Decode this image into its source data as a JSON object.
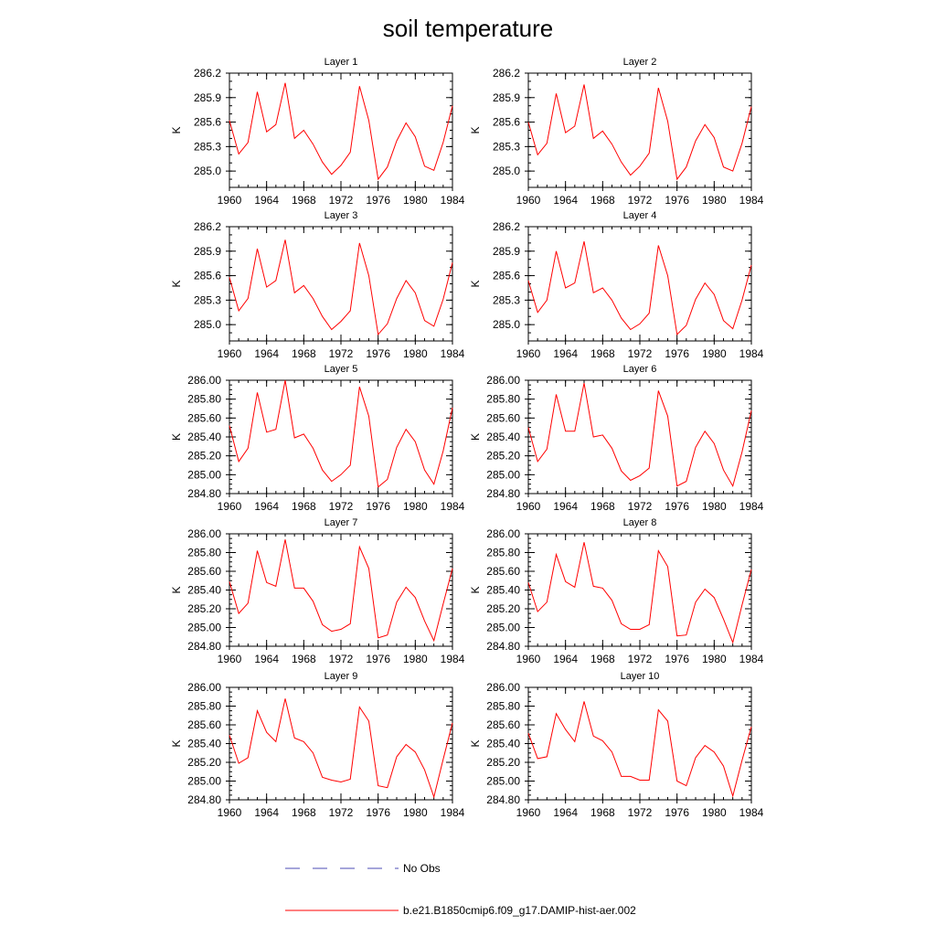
{
  "figure": {
    "title": "soil temperature"
  },
  "legend": {
    "entries": [
      {
        "label": "No Obs",
        "color": "#4b4bb4",
        "style": "dashed"
      },
      {
        "label": "b.e21.B1850cmip6.f09_g17.DAMIP-hist-aer.002",
        "color": "#ff0000",
        "style": "solid"
      }
    ]
  },
  "chart_data": [
    {
      "type": "line",
      "title": "Layer 1",
      "ylabel": "K",
      "xlim": [
        1960,
        1984
      ],
      "xticks": [
        "1960",
        "1964",
        "1968",
        "1972",
        "1976",
        "1980",
        "1984"
      ],
      "ylim": [
        284.8,
        286.2
      ],
      "yticks": [
        "285.0",
        "285.3",
        "285.6",
        "285.9",
        "286.2"
      ],
      "grid": false,
      "series": [
        {
          "color": "#ff0000",
          "x": [
            1960,
            1961,
            1962,
            1963,
            1964,
            1965,
            1966,
            1967,
            1968,
            1969,
            1970,
            1971,
            1972,
            1973,
            1974,
            1975,
            1976,
            1977,
            1978,
            1979,
            1980,
            1981,
            1982,
            1983,
            1984
          ],
          "values": [
            285.62,
            285.21,
            285.35,
            285.97,
            285.48,
            285.57,
            286.08,
            285.4,
            285.5,
            285.33,
            285.11,
            284.96,
            285.07,
            285.23,
            286.04,
            285.62,
            284.9,
            285.05,
            285.37,
            285.59,
            285.42,
            285.06,
            285.01,
            285.35,
            285.8
          ]
        }
      ]
    },
    {
      "type": "line",
      "title": "Layer 2",
      "ylabel": "K",
      "xlim": [
        1960,
        1984
      ],
      "xticks": [
        "1960",
        "1964",
        "1968",
        "1972",
        "1976",
        "1980",
        "1984"
      ],
      "ylim": [
        284.8,
        286.2
      ],
      "yticks": [
        "285.0",
        "285.3",
        "285.6",
        "285.9",
        "286.2"
      ],
      "grid": false,
      "series": [
        {
          "color": "#ff0000",
          "x": [
            1960,
            1961,
            1962,
            1963,
            1964,
            1965,
            1966,
            1967,
            1968,
            1969,
            1970,
            1971,
            1972,
            1973,
            1974,
            1975,
            1976,
            1977,
            1978,
            1979,
            1980,
            1981,
            1982,
            1983,
            1984
          ],
          "values": [
            285.6,
            285.2,
            285.34,
            285.95,
            285.47,
            285.55,
            286.06,
            285.4,
            285.49,
            285.33,
            285.11,
            284.95,
            285.06,
            285.22,
            286.02,
            285.61,
            284.9,
            285.05,
            285.37,
            285.57,
            285.41,
            285.05,
            285.0,
            285.34,
            285.79
          ]
        }
      ]
    },
    {
      "type": "line",
      "title": "Layer 3",
      "ylabel": "K",
      "xlim": [
        1960,
        1984
      ],
      "xticks": [
        "1960",
        "1964",
        "1968",
        "1972",
        "1976",
        "1980",
        "1984"
      ],
      "ylim": [
        284.8,
        286.2
      ],
      "yticks": [
        "285.0",
        "285.3",
        "285.6",
        "285.9",
        "286.2"
      ],
      "grid": false,
      "series": [
        {
          "color": "#ff0000",
          "x": [
            1960,
            1961,
            1962,
            1963,
            1964,
            1965,
            1966,
            1967,
            1968,
            1969,
            1970,
            1971,
            1972,
            1973,
            1974,
            1975,
            1976,
            1977,
            1978,
            1979,
            1980,
            1981,
            1982,
            1983,
            1984
          ],
          "values": [
            285.58,
            285.17,
            285.32,
            285.93,
            285.46,
            285.54,
            286.04,
            285.39,
            285.48,
            285.32,
            285.1,
            284.94,
            285.04,
            285.17,
            286.0,
            285.6,
            284.88,
            285.01,
            285.32,
            285.54,
            285.39,
            285.05,
            284.98,
            285.31,
            285.76
          ]
        }
      ]
    },
    {
      "type": "line",
      "title": "Layer 4",
      "ylabel": "K",
      "xlim": [
        1960,
        1984
      ],
      "xticks": [
        "1960",
        "1964",
        "1968",
        "1972",
        "1976",
        "1980",
        "1984"
      ],
      "ylim": [
        284.8,
        286.2
      ],
      "yticks": [
        "285.0",
        "285.3",
        "285.6",
        "285.9",
        "286.2"
      ],
      "grid": false,
      "series": [
        {
          "color": "#ff0000",
          "x": [
            1960,
            1961,
            1962,
            1963,
            1964,
            1965,
            1966,
            1967,
            1968,
            1969,
            1970,
            1971,
            1972,
            1973,
            1974,
            1975,
            1976,
            1977,
            1978,
            1979,
            1980,
            1981,
            1982,
            1983,
            1984
          ],
          "values": [
            285.54,
            285.15,
            285.3,
            285.9,
            285.45,
            285.51,
            286.02,
            285.39,
            285.45,
            285.3,
            285.08,
            284.94,
            285.01,
            285.14,
            285.97,
            285.6,
            284.88,
            284.99,
            285.31,
            285.51,
            285.37,
            285.05,
            284.95,
            285.3,
            285.73
          ]
        }
      ]
    },
    {
      "type": "line",
      "title": "Layer 5",
      "ylabel": "K",
      "xlim": [
        1960,
        1984
      ],
      "xticks": [
        "1960",
        "1964",
        "1968",
        "1972",
        "1976",
        "1980",
        "1984"
      ],
      "ylim": [
        284.8,
        286.0
      ],
      "yticks": [
        "284.80",
        "285.00",
        "285.20",
        "285.40",
        "285.60",
        "285.80",
        "286.00"
      ],
      "grid": false,
      "series": [
        {
          "color": "#ff0000",
          "x": [
            1960,
            1961,
            1962,
            1963,
            1964,
            1965,
            1966,
            1967,
            1968,
            1969,
            1970,
            1971,
            1972,
            1973,
            1974,
            1975,
            1976,
            1977,
            1978,
            1979,
            1980,
            1981,
            1982,
            1983,
            1984
          ],
          "values": [
            285.52,
            285.14,
            285.28,
            285.87,
            285.45,
            285.48,
            286.0,
            285.39,
            285.43,
            285.28,
            285.05,
            284.93,
            285.0,
            285.1,
            285.93,
            285.62,
            284.87,
            284.95,
            285.29,
            285.48,
            285.35,
            285.05,
            284.9,
            285.25,
            285.71
          ]
        }
      ]
    },
    {
      "type": "line",
      "title": "Layer 6",
      "ylabel": "K",
      "xlim": [
        1960,
        1984
      ],
      "xticks": [
        "1960",
        "1964",
        "1968",
        "1972",
        "1976",
        "1980",
        "1984"
      ],
      "ylim": [
        284.8,
        286.0
      ],
      "yticks": [
        "284.80",
        "285.00",
        "285.20",
        "285.40",
        "285.60",
        "285.80",
        "286.00"
      ],
      "grid": false,
      "series": [
        {
          "color": "#ff0000",
          "x": [
            1960,
            1961,
            1962,
            1963,
            1964,
            1965,
            1966,
            1967,
            1968,
            1969,
            1970,
            1971,
            1972,
            1973,
            1974,
            1975,
            1976,
            1977,
            1978,
            1979,
            1980,
            1981,
            1982,
            1983,
            1984
          ],
          "values": [
            285.5,
            285.14,
            285.27,
            285.85,
            285.46,
            285.46,
            285.97,
            285.4,
            285.42,
            285.28,
            285.04,
            284.94,
            284.99,
            285.07,
            285.89,
            285.62,
            284.88,
            284.93,
            285.29,
            285.46,
            285.33,
            285.05,
            284.88,
            285.24,
            285.68
          ]
        }
      ]
    },
    {
      "type": "line",
      "title": "Layer 7",
      "ylabel": "K",
      "xlim": [
        1960,
        1984
      ],
      "xticks": [
        "1960",
        "1964",
        "1968",
        "1972",
        "1976",
        "1980",
        "1984"
      ],
      "ylim": [
        284.8,
        286.0
      ],
      "yticks": [
        "284.80",
        "285.00",
        "285.20",
        "285.40",
        "285.60",
        "285.80",
        "286.00"
      ],
      "grid": false,
      "series": [
        {
          "color": "#ff0000",
          "x": [
            1960,
            1961,
            1962,
            1963,
            1964,
            1965,
            1966,
            1967,
            1968,
            1969,
            1970,
            1971,
            1972,
            1973,
            1974,
            1975,
            1976,
            1977,
            1978,
            1979,
            1980,
            1981,
            1982,
            1983,
            1984
          ],
          "values": [
            285.49,
            285.15,
            285.26,
            285.82,
            285.48,
            285.44,
            285.94,
            285.42,
            285.42,
            285.28,
            285.03,
            284.96,
            284.98,
            285.04,
            285.86,
            285.63,
            284.89,
            284.92,
            285.27,
            285.43,
            285.32,
            285.07,
            284.86,
            285.25,
            285.63
          ]
        }
      ]
    },
    {
      "type": "line",
      "title": "Layer 8",
      "ylabel": "K",
      "xlim": [
        1960,
        1984
      ],
      "xticks": [
        "1960",
        "1964",
        "1968",
        "1972",
        "1976",
        "1980",
        "1984"
      ],
      "ylim": [
        284.8,
        286.0
      ],
      "yticks": [
        "284.80",
        "285.00",
        "285.20",
        "285.40",
        "285.60",
        "285.80",
        "286.00"
      ],
      "grid": false,
      "series": [
        {
          "color": "#ff0000",
          "x": [
            1960,
            1961,
            1962,
            1963,
            1964,
            1965,
            1966,
            1967,
            1968,
            1969,
            1970,
            1971,
            1972,
            1973,
            1974,
            1975,
            1976,
            1977,
            1978,
            1979,
            1980,
            1981,
            1982,
            1983,
            1984
          ],
          "values": [
            285.48,
            285.17,
            285.27,
            285.78,
            285.49,
            285.43,
            285.91,
            285.44,
            285.42,
            285.29,
            285.04,
            284.98,
            284.98,
            285.03,
            285.82,
            285.65,
            284.91,
            284.92,
            285.27,
            285.41,
            285.32,
            285.09,
            284.84,
            285.24,
            285.62
          ]
        }
      ]
    },
    {
      "type": "line",
      "title": "Layer 9",
      "ylabel": "K",
      "xlim": [
        1960,
        1984
      ],
      "xticks": [
        "1960",
        "1964",
        "1968",
        "1972",
        "1976",
        "1980",
        "1984"
      ],
      "ylim": [
        284.8,
        286.0
      ],
      "yticks": [
        "284.80",
        "285.00",
        "285.20",
        "285.40",
        "285.60",
        "285.80",
        "286.00"
      ],
      "grid": false,
      "series": [
        {
          "color": "#ff0000",
          "x": [
            1960,
            1961,
            1962,
            1963,
            1964,
            1965,
            1966,
            1967,
            1968,
            1969,
            1970,
            1971,
            1972,
            1973,
            1974,
            1975,
            1976,
            1977,
            1978,
            1979,
            1980,
            1981,
            1982,
            1983,
            1984
          ],
          "values": [
            285.49,
            285.19,
            285.25,
            285.75,
            285.52,
            285.42,
            285.88,
            285.46,
            285.42,
            285.3,
            285.04,
            285.01,
            284.99,
            285.02,
            285.79,
            285.64,
            284.95,
            284.93,
            285.26,
            285.39,
            285.31,
            285.12,
            284.83,
            285.23,
            285.62
          ]
        }
      ]
    },
    {
      "type": "line",
      "title": "Layer 10",
      "ylabel": "K",
      "xlim": [
        1960,
        1984
      ],
      "xticks": [
        "1960",
        "1964",
        "1968",
        "1972",
        "1976",
        "1980",
        "1984"
      ],
      "ylim": [
        284.8,
        286.0
      ],
      "yticks": [
        "284.80",
        "285.00",
        "285.20",
        "285.40",
        "285.60",
        "285.80",
        "286.00"
      ],
      "grid": false,
      "series": [
        {
          "color": "#ff0000",
          "x": [
            1960,
            1961,
            1962,
            1963,
            1964,
            1965,
            1966,
            1967,
            1968,
            1969,
            1970,
            1971,
            1972,
            1973,
            1974,
            1975,
            1976,
            1977,
            1978,
            1979,
            1980,
            1981,
            1982,
            1983,
            1984
          ],
          "values": [
            285.51,
            285.24,
            285.26,
            285.72,
            285.55,
            285.42,
            285.85,
            285.48,
            285.43,
            285.31,
            285.05,
            285.05,
            285.01,
            285.01,
            285.76,
            285.64,
            285.0,
            284.95,
            285.25,
            285.38,
            285.31,
            285.16,
            284.84,
            285.22,
            285.58
          ]
        }
      ]
    }
  ]
}
